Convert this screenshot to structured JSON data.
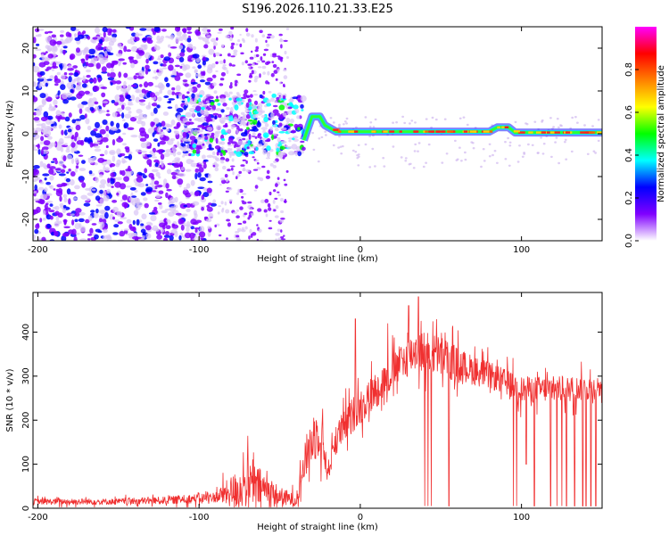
{
  "title": "S196.2026.110.21.33.E25",
  "chart_data": [
    {
      "type": "heatmap",
      "name": "spectrogram",
      "xlabel": "Height of straight line (km)",
      "ylabel": "Frequency (Hz)",
      "xlim": [
        -203,
        150
      ],
      "ylim": [
        -25,
        25
      ],
      "xticks": [
        -200,
        -100,
        0,
        100
      ],
      "xtick_labels": [
        "-200",
        "-100",
        "0",
        "100"
      ],
      "yticks": [
        -20,
        -10,
        0,
        10,
        20
      ],
      "ytick_labels": [
        "-20",
        "-10",
        "0",
        "10",
        "20"
      ],
      "noise_regions": [
        {
          "x0": -203,
          "x1": -91,
          "density": "dense",
          "freq_span": [
            -25,
            25
          ]
        },
        {
          "x0": -91,
          "x1": -45,
          "density": "sparse",
          "freq_span": [
            -25,
            25
          ]
        },
        {
          "x0": -110,
          "x1": -35,
          "density": "cluster",
          "freq_span": [
            -5,
            9
          ]
        }
      ],
      "signal_line": [
        {
          "x": -35,
          "f": -1.5
        },
        {
          "x": -30,
          "f": 4
        },
        {
          "x": -25,
          "f": 4
        },
        {
          "x": -22,
          "f": 2
        },
        {
          "x": -15,
          "f": 0.5
        },
        {
          "x": 0,
          "f": 0.5
        },
        {
          "x": 80,
          "f": 0.5
        },
        {
          "x": 85,
          "f": 1.5
        },
        {
          "x": 92,
          "f": 1.5
        },
        {
          "x": 96,
          "f": 0.3
        },
        {
          "x": 150,
          "f": 0.3
        }
      ],
      "colorbar": {
        "label": "Normalized spectral amplitude",
        "range": [
          0,
          1
        ],
        "ticks": [
          0,
          0.2,
          0.4,
          0.6,
          0.8
        ],
        "tick_labels": [
          "0.0",
          "0.2",
          "0.4",
          "0.6",
          "0.8"
        ],
        "colors": [
          "#ffffff",
          "#8000ff",
          "#0000ff",
          "#00ffff",
          "#00ff00",
          "#ffff00",
          "#ff8000",
          "#ff0000",
          "#ff00ff"
        ]
      }
    },
    {
      "type": "line",
      "name": "snr",
      "xlabel": "Height of straight line (km)",
      "ylabel": "SNR (10 * v/v)",
      "xlim": [
        -203,
        150
      ],
      "ylim": [
        0,
        490
      ],
      "xticks": [
        -200,
        -100,
        0,
        100
      ],
      "xtick_labels": [
        "-200",
        "-100",
        "0",
        "100"
      ],
      "yticks": [
        0,
        100,
        200,
        300,
        400
      ],
      "ytick_labels": [
        "0",
        "100",
        "200",
        "300",
        "400"
      ],
      "color": "#f03030",
      "envelope": [
        {
          "x": -203,
          "base": 15,
          "amp": 12
        },
        {
          "x": -150,
          "base": 15,
          "amp": 12
        },
        {
          "x": -120,
          "base": 18,
          "amp": 15
        },
        {
          "x": -90,
          "base": 25,
          "amp": 20
        },
        {
          "x": -78,
          "base": 40,
          "amp": 70
        },
        {
          "x": -70,
          "base": 55,
          "amp": 90
        },
        {
          "x": -60,
          "base": 45,
          "amp": 70
        },
        {
          "x": -50,
          "base": 25,
          "amp": 40
        },
        {
          "x": -40,
          "base": 18,
          "amp": 25
        },
        {
          "x": -32,
          "base": 140,
          "amp": 90
        },
        {
          "x": -25,
          "base": 180,
          "amp": 100
        },
        {
          "x": -20,
          "base": 80,
          "amp": 40
        },
        {
          "x": -15,
          "base": 160,
          "amp": 60
        },
        {
          "x": -5,
          "base": 210,
          "amp": 70
        },
        {
          "x": 5,
          "base": 250,
          "amp": 70
        },
        {
          "x": 15,
          "base": 290,
          "amp": 70
        },
        {
          "x": 25,
          "base": 330,
          "amp": 70
        },
        {
          "x": 35,
          "base": 360,
          "amp": 80
        },
        {
          "x": 50,
          "base": 345,
          "amp": 80
        },
        {
          "x": 65,
          "base": 320,
          "amp": 60
        },
        {
          "x": 85,
          "base": 295,
          "amp": 50
        },
        {
          "x": 100,
          "base": 270,
          "amp": 50
        },
        {
          "x": 125,
          "base": 270,
          "amp": 50
        },
        {
          "x": 150,
          "base": 275,
          "amp": 45
        }
      ],
      "dropouts": [
        {
          "x": 40,
          "y": 5
        },
        {
          "x": 42,
          "y": 5
        },
        {
          "x": 44,
          "y": 5
        },
        {
          "x": 55,
          "y": 5
        },
        {
          "x": 95,
          "y": 5
        },
        {
          "x": 97,
          "y": 5
        },
        {
          "x": 103,
          "y": 100
        },
        {
          "x": 108,
          "y": 5
        },
        {
          "x": 118,
          "y": 5
        },
        {
          "x": 122,
          "y": 5
        },
        {
          "x": 125,
          "y": 5
        },
        {
          "x": 128,
          "y": 5
        },
        {
          "x": 133,
          "y": 5
        },
        {
          "x": 138,
          "y": 5
        },
        {
          "x": 140,
          "y": 5
        },
        {
          "x": 143,
          "y": 5
        },
        {
          "x": 146,
          "y": 5
        }
      ],
      "spikes": [
        {
          "x": -3,
          "y": 430
        },
        {
          "x": 17,
          "y": 420
        },
        {
          "x": 30,
          "y": 460
        },
        {
          "x": 36,
          "y": 480
        }
      ]
    }
  ]
}
